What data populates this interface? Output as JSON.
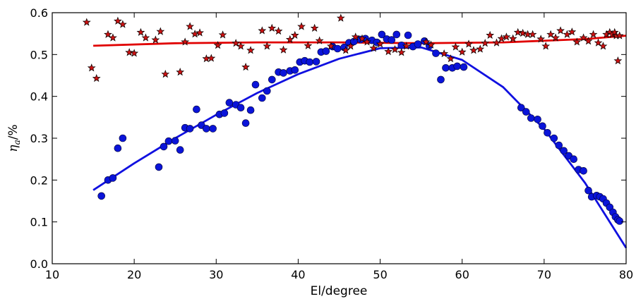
{
  "chart_data": {
    "type": "scatter",
    "title": "",
    "xlabel": "El/degree",
    "ylabel": "η",
    "ylabel_sub": "a",
    "ylabel_suffix": "/%",
    "xlim": [
      10,
      80
    ],
    "ylim": [
      0.0,
      0.6
    ],
    "xticks": [
      10,
      20,
      30,
      40,
      50,
      60,
      70,
      80
    ],
    "yticks": [
      0.0,
      0.1,
      0.2,
      0.3,
      0.4,
      0.5,
      0.6
    ],
    "xtick_labels": [
      "10",
      "20",
      "30",
      "40",
      "50",
      "60",
      "70",
      "80"
    ],
    "ytick_labels": [
      "0.0",
      "0.1",
      "0.2",
      "0.3",
      "0.4",
      "0.5",
      "0.6"
    ],
    "grid": false,
    "legend": "none",
    "series": [
      {
        "marker": "circle",
        "color": "#0a14d9",
        "points": [
          [
            16.0,
            0.162
          ],
          [
            16.8,
            0.2
          ],
          [
            17.4,
            0.205
          ],
          [
            18.0,
            0.276
          ],
          [
            18.6,
            0.3
          ],
          [
            23.0,
            0.231
          ],
          [
            23.6,
            0.28
          ],
          [
            24.2,
            0.293
          ],
          [
            25.0,
            0.294
          ],
          [
            25.6,
            0.272
          ],
          [
            26.2,
            0.325
          ],
          [
            26.8,
            0.323
          ],
          [
            27.6,
            0.369
          ],
          [
            28.2,
            0.331
          ],
          [
            28.8,
            0.323
          ],
          [
            29.6,
            0.323
          ],
          [
            30.4,
            0.357
          ],
          [
            31.0,
            0.36
          ],
          [
            31.6,
            0.385
          ],
          [
            32.4,
            0.38
          ],
          [
            33.0,
            0.373
          ],
          [
            33.6,
            0.336
          ],
          [
            34.2,
            0.367
          ],
          [
            34.8,
            0.428
          ],
          [
            35.6,
            0.396
          ],
          [
            36.2,
            0.413
          ],
          [
            36.8,
            0.44
          ],
          [
            37.6,
            0.458
          ],
          [
            38.2,
            0.456
          ],
          [
            39.0,
            0.461
          ],
          [
            39.6,
            0.463
          ],
          [
            40.2,
            0.482
          ],
          [
            40.8,
            0.485
          ],
          [
            41.4,
            0.482
          ],
          [
            42.2,
            0.483
          ],
          [
            42.8,
            0.506
          ],
          [
            43.4,
            0.508
          ],
          [
            44.2,
            0.519
          ],
          [
            44.8,
            0.514
          ],
          [
            45.6,
            0.517
          ],
          [
            46.2,
            0.528
          ],
          [
            46.8,
            0.531
          ],
          [
            47.6,
            0.536
          ],
          [
            48.2,
            0.538
          ],
          [
            49.0,
            0.534
          ],
          [
            49.6,
            0.529
          ],
          [
            50.2,
            0.548
          ],
          [
            50.8,
            0.537
          ],
          [
            51.4,
            0.535
          ],
          [
            52.0,
            0.548
          ],
          [
            52.6,
            0.522
          ],
          [
            53.4,
            0.546
          ],
          [
            54.0,
            0.519
          ],
          [
            54.6,
            0.525
          ],
          [
            55.4,
            0.532
          ],
          [
            56.0,
            0.521
          ],
          [
            56.8,
            0.503
          ],
          [
            57.4,
            0.44
          ],
          [
            58.0,
            0.468
          ],
          [
            58.8,
            0.468
          ],
          [
            59.4,
            0.472
          ],
          [
            60.2,
            0.47
          ],
          [
            67.2,
            0.373
          ],
          [
            67.8,
            0.363
          ],
          [
            68.4,
            0.348
          ],
          [
            69.2,
            0.345
          ],
          [
            69.8,
            0.329
          ],
          [
            70.4,
            0.313
          ],
          [
            71.2,
            0.3
          ],
          [
            71.8,
            0.283
          ],
          [
            72.4,
            0.27
          ],
          [
            73.0,
            0.258
          ],
          [
            73.6,
            0.25
          ],
          [
            74.2,
            0.225
          ],
          [
            74.8,
            0.222
          ],
          [
            75.4,
            0.175
          ],
          [
            75.8,
            0.16
          ],
          [
            76.4,
            0.163
          ],
          [
            76.8,
            0.16
          ],
          [
            77.2,
            0.155
          ],
          [
            77.6,
            0.145
          ],
          [
            78.0,
            0.135
          ],
          [
            78.4,
            0.123
          ],
          [
            78.7,
            0.112
          ],
          [
            79.0,
            0.105
          ],
          [
            79.2,
            0.102
          ]
        ]
      },
      {
        "marker": "star",
        "color": "#cc1111",
        "points": [
          [
            14.2,
            0.577
          ],
          [
            14.8,
            0.468
          ],
          [
            15.4,
            0.443
          ],
          [
            16.8,
            0.548
          ],
          [
            17.4,
            0.54
          ],
          [
            18.0,
            0.58
          ],
          [
            18.6,
            0.572
          ],
          [
            19.4,
            0.505
          ],
          [
            20.0,
            0.503
          ],
          [
            20.8,
            0.553
          ],
          [
            21.4,
            0.54
          ],
          [
            22.6,
            0.535
          ],
          [
            23.2,
            0.555
          ],
          [
            23.8,
            0.453
          ],
          [
            25.6,
            0.458
          ],
          [
            26.2,
            0.53
          ],
          [
            26.8,
            0.567
          ],
          [
            27.4,
            0.549
          ],
          [
            28.0,
            0.552
          ],
          [
            28.8,
            0.49
          ],
          [
            29.4,
            0.491
          ],
          [
            30.2,
            0.522
          ],
          [
            30.8,
            0.547
          ],
          [
            32.4,
            0.527
          ],
          [
            33.0,
            0.52
          ],
          [
            33.6,
            0.47
          ],
          [
            34.2,
            0.51
          ],
          [
            35.6,
            0.557
          ],
          [
            36.2,
            0.52
          ],
          [
            36.8,
            0.563
          ],
          [
            37.6,
            0.556
          ],
          [
            38.2,
            0.511
          ],
          [
            39.0,
            0.536
          ],
          [
            39.6,
            0.546
          ],
          [
            40.4,
            0.567
          ],
          [
            41.2,
            0.521
          ],
          [
            42.0,
            0.563
          ],
          [
            42.6,
            0.533
          ],
          [
            44.0,
            0.52
          ],
          [
            45.2,
            0.587
          ],
          [
            45.8,
            0.51
          ],
          [
            46.4,
            0.52
          ],
          [
            47.0,
            0.542
          ],
          [
            47.8,
            0.538
          ],
          [
            48.4,
            0.53
          ],
          [
            49.2,
            0.515
          ],
          [
            50.0,
            0.525
          ],
          [
            51.0,
            0.507
          ],
          [
            51.8,
            0.512
          ],
          [
            52.6,
            0.505
          ],
          [
            53.2,
            0.52
          ],
          [
            55.6,
            0.53
          ],
          [
            56.2,
            0.523
          ],
          [
            57.8,
            0.502
          ],
          [
            58.6,
            0.49
          ],
          [
            59.2,
            0.518
          ],
          [
            60.0,
            0.506
          ],
          [
            60.8,
            0.525
          ],
          [
            61.4,
            0.51
          ],
          [
            62.2,
            0.513
          ],
          [
            62.8,
            0.527
          ],
          [
            63.4,
            0.546
          ],
          [
            64.2,
            0.528
          ],
          [
            64.8,
            0.538
          ],
          [
            65.4,
            0.542
          ],
          [
            66.2,
            0.538
          ],
          [
            66.8,
            0.553
          ],
          [
            67.4,
            0.551
          ],
          [
            68.0,
            0.548
          ],
          [
            68.6,
            0.548
          ],
          [
            69.6,
            0.537
          ],
          [
            70.2,
            0.52
          ],
          [
            70.8,
            0.548
          ],
          [
            71.4,
            0.54
          ],
          [
            72.0,
            0.557
          ],
          [
            72.8,
            0.548
          ],
          [
            73.4,
            0.554
          ],
          [
            74.0,
            0.53
          ],
          [
            74.8,
            0.54
          ],
          [
            75.4,
            0.532
          ],
          [
            76.0,
            0.548
          ],
          [
            76.6,
            0.528
          ],
          [
            77.2,
            0.52
          ],
          [
            77.6,
            0.548
          ],
          [
            78.0,
            0.553
          ],
          [
            78.3,
            0.548
          ],
          [
            78.6,
            0.553
          ],
          [
            78.8,
            0.545
          ],
          [
            79.0,
            0.485
          ],
          [
            79.2,
            0.545
          ]
        ]
      }
    ],
    "fits": [
      {
        "color": "#1010e0",
        "points": [
          [
            15.0,
            0.176
          ],
          [
            20.0,
            0.24
          ],
          [
            25.0,
            0.3
          ],
          [
            30.0,
            0.356
          ],
          [
            35.0,
            0.408
          ],
          [
            40.0,
            0.453
          ],
          [
            45.0,
            0.49
          ],
          [
            50.0,
            0.515
          ],
          [
            55.0,
            0.517
          ],
          [
            60.0,
            0.487
          ],
          [
            65.0,
            0.422
          ],
          [
            70.0,
            0.322
          ],
          [
            75.0,
            0.193
          ],
          [
            80.0,
            0.038
          ]
        ]
      },
      {
        "color": "#e00000",
        "points": [
          [
            15.0,
            0.521
          ],
          [
            25.0,
            0.527
          ],
          [
            35.0,
            0.529
          ],
          [
            45.0,
            0.529
          ],
          [
            55.0,
            0.527
          ],
          [
            65.0,
            0.529
          ],
          [
            75.0,
            0.537
          ],
          [
            80.0,
            0.545
          ]
        ]
      }
    ]
  }
}
